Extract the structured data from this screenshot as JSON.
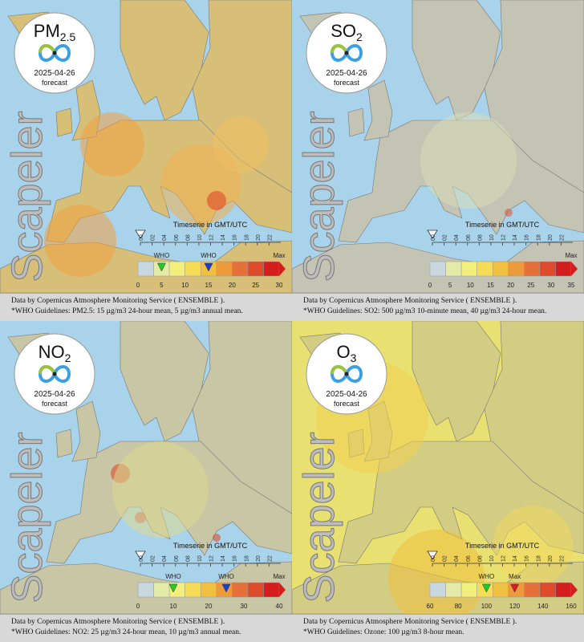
{
  "panels": [
    {
      "title": {
        "main": "PM",
        "sub": "2.5"
      },
      "date": "2025-04-26",
      "note": "forecast",
      "brand": "Scapeler",
      "timeline_label": "Timeserie in GMT/UTC",
      "hours": [
        "00",
        "02",
        "04",
        "06",
        "08",
        "10",
        "12",
        "14",
        "16",
        "18",
        "20",
        "22"
      ],
      "legend": {
        "ticks": [
          0,
          5,
          10,
          15,
          20,
          25,
          30
        ],
        "max_label": "Max",
        "who_labels": [
          "WHO",
          "WHO"
        ]
      },
      "footer": [
        "Data by Copernicus Atmosphere Monitoring Service ( ENSEMBLE ).",
        "*WHO Guidelines: PM2.5: 15 µg/m3 24-hour mean, 5 µg/m3 annual mean."
      ]
    },
    {
      "title": {
        "main": "SO",
        "sub": "2"
      },
      "date": "2025-04-26",
      "note": "forecast",
      "brand": "Scapeler",
      "timeline_label": "Timeserie in GMT/UTC",
      "hours": [
        "00",
        "02",
        "04",
        "06",
        "08",
        "10",
        "12",
        "14",
        "16",
        "18",
        "20",
        "22"
      ],
      "legend": {
        "ticks": [
          0,
          5,
          10,
          15,
          20,
          25,
          30,
          35
        ],
        "max_label": "Max",
        "who_labels": []
      },
      "footer": [
        "Data by Copernicus Atmosphere Monitoring Service ( ENSEMBLE ).",
        "*WHO Guidelines: SO2: 500 µg/m3 10-minute mean, 40 µg/m3 24-hour mean."
      ]
    },
    {
      "title": {
        "main": "NO",
        "sub": "2"
      },
      "date": "2025-04-26",
      "note": "forecast",
      "brand": "Scapeler",
      "timeline_label": "Timeserie in GMT/UTC",
      "hours": [
        "00",
        "02",
        "04",
        "06",
        "08",
        "10",
        "12",
        "14",
        "16",
        "18",
        "20",
        "22"
      ],
      "legend": {
        "ticks": [
          0,
          10,
          20,
          30,
          40
        ],
        "max_label": "Max",
        "who_labels": [
          "WHO",
          "WHO"
        ]
      },
      "footer": [
        "Data by Copernicus Atmosphere Monitoring Service ( ENSEMBLE ).",
        "*WHO Guidelines: NO2: 25 µg/m3 24-hour mean, 10 µg/m3 annual mean."
      ]
    },
    {
      "title": {
        "main": "O",
        "sub": "3"
      },
      "date": "2025-04-26",
      "note": "forecast",
      "brand": "Scapeler",
      "timeline_label": "Timeserie in GMT/UTC",
      "hours": [
        "00",
        "02",
        "04",
        "06",
        "08",
        "10",
        "12",
        "14",
        "16",
        "18",
        "20",
        "22"
      ],
      "legend": {
        "ticks": [
          60,
          80,
          100,
          120,
          140,
          160
        ],
        "max_label": "Max",
        "who_labels": [
          "WHO"
        ]
      },
      "footer": [
        "Data by Copernicus Atmosphere Monitoring Service ( ENSEMBLE ).",
        "*WHO Guidelines: Ozone: 100 µg/m3 8-hour mean."
      ]
    }
  ]
}
